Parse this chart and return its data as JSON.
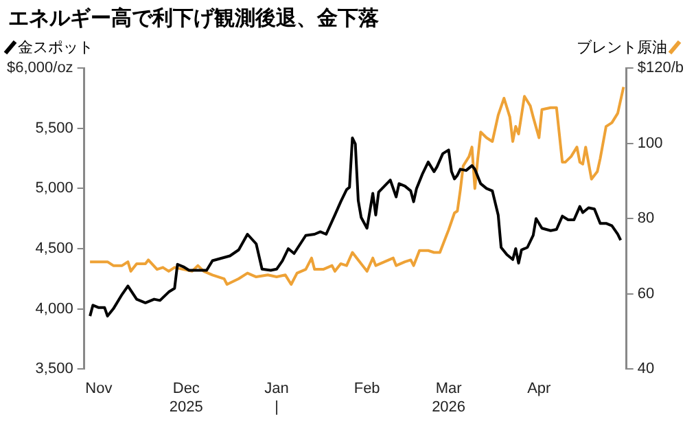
{
  "chart_data": {
    "type": "line",
    "title": "エネルギー高で利下げ観測後退、金下落",
    "legend": "top",
    "marker": "none",
    "line_style": "solid",
    "xlim": [
      "2025-10-27",
      "2026-05-01"
    ],
    "xticks": [
      {
        "value": "2025-11-01",
        "label": "Nov"
      },
      {
        "value": "2025-12-01",
        "label": "Dec\n2025"
      },
      {
        "value": "2026-01-01",
        "label": "Jan\n|"
      },
      {
        "value": "2026-02-01",
        "label": "Feb"
      },
      {
        "value": "2026-03-01",
        "label": "Mar\n2026"
      },
      {
        "value": "2026-04-01",
        "label": "Apr"
      }
    ],
    "ylim": [
      3500,
      6000
    ],
    "yticks": [
      {
        "value": 3500,
        "label": "3,500"
      },
      {
        "value": 4000,
        "label": "4,000"
      },
      {
        "value": 4500,
        "label": "4,500"
      },
      {
        "value": 5000,
        "label": "5,000"
      },
      {
        "value": 5500,
        "label": "5,500"
      },
      {
        "value": 6000,
        "label": "$6,000/oz"
      }
    ],
    "y2lim": [
      40,
      120
    ],
    "y2ticks": [
      40,
      60,
      80,
      100,
      {
        "value": 120,
        "label": "$120/b"
      }
    ],
    "series": [
      {
        "name": "金スポット",
        "color": "#000000",
        "x": [
          "2025-10-29",
          "2025-10-30",
          "2025-11-01",
          "2025-11-03",
          "2025-11-04",
          "2025-11-06",
          "2025-11-09",
          "2025-11-11",
          "2025-11-14",
          "2025-11-17",
          "2025-11-20",
          "2025-11-22",
          "2025-11-25",
          "2025-11-27",
          "2025-11-28",
          "2025-11-30",
          "2025-12-02",
          "2025-12-05",
          "2025-12-08",
          "2025-12-10",
          "2025-12-13",
          "2025-12-16",
          "2025-12-19",
          "2025-12-22",
          "2025-12-25",
          "2025-12-27",
          "2025-12-30",
          "2026-01-01",
          "2026-01-03",
          "2026-01-05",
          "2026-01-07",
          "2026-01-11",
          "2026-01-14",
          "2026-01-16",
          "2026-01-18",
          "2026-01-21",
          "2026-01-23",
          "2026-01-25",
          "2026-01-26",
          "2026-01-27",
          "2026-01-28",
          "2026-01-29",
          "2026-01-30",
          "2026-02-01",
          "2026-02-03",
          "2026-02-04",
          "2026-02-05",
          "2026-02-07",
          "2026-02-09",
          "2026-02-11",
          "2026-02-12",
          "2026-02-14",
          "2026-02-16",
          "2026-02-17",
          "2026-02-18",
          "2026-02-20",
          "2026-02-22",
          "2026-02-24",
          "2026-02-25",
          "2026-02-27",
          "2026-03-01",
          "2026-03-02",
          "2026-03-03",
          "2026-03-04",
          "2026-03-05",
          "2026-03-07",
          "2026-03-09",
          "2026-03-10",
          "2026-03-12",
          "2026-03-14",
          "2026-03-16",
          "2026-03-18",
          "2026-03-19",
          "2026-03-21",
          "2026-03-23",
          "2026-03-24",
          "2026-03-25",
          "2026-03-26",
          "2026-03-28",
          "2026-03-30",
          "2026-03-31",
          "2026-04-02",
          "2026-04-05",
          "2026-04-07",
          "2026-04-09",
          "2026-04-11",
          "2026-04-13",
          "2026-04-15",
          "2026-04-16",
          "2026-04-18",
          "2026-04-20",
          "2026-04-22",
          "2026-04-24",
          "2026-04-26",
          "2026-04-28",
          "2026-04-29"
        ],
        "values": [
          3940,
          4030,
          4010,
          4010,
          3940,
          4000,
          4120,
          4190,
          4080,
          4050,
          4080,
          4070,
          4140,
          4170,
          4370,
          4350,
          4320,
          4320,
          4320,
          4400,
          4420,
          4440,
          4490,
          4620,
          4540,
          4330,
          4320,
          4330,
          4400,
          4500,
          4460,
          4610,
          4620,
          4640,
          4620,
          4780,
          4890,
          4990,
          5010,
          5420,
          5370,
          4900,
          4760,
          4670,
          4960,
          4780,
          4970,
          5020,
          5070,
          4930,
          5040,
          5020,
          4980,
          4890,
          5000,
          5120,
          5220,
          5140,
          5180,
          5290,
          5320,
          5140,
          5080,
          5110,
          5160,
          5150,
          5190,
          5160,
          5040,
          5000,
          4980,
          4780,
          4510,
          4450,
          4410,
          4500,
          4380,
          4490,
          4510,
          4610,
          4750,
          4670,
          4650,
          4660,
          4770,
          4740,
          4740,
          4850,
          4800,
          4840,
          4830,
          4710,
          4710,
          4690,
          4620,
          4570
        ]
      },
      {
        "name": "ブレント原油",
        "color": "#eea236",
        "axis": "y2",
        "x": [
          "2025-10-29",
          "2025-11-04",
          "2025-11-06",
          "2025-11-09",
          "2025-11-11",
          "2025-11-12",
          "2025-11-14",
          "2025-11-17",
          "2025-11-18",
          "2025-11-21",
          "2025-11-23",
          "2025-11-25",
          "2025-11-27",
          "2025-11-30",
          "2025-12-03",
          "2025-12-05",
          "2025-12-07",
          "2025-12-10",
          "2025-12-14",
          "2025-12-15",
          "2025-12-19",
          "2025-12-22",
          "2025-12-25",
          "2025-12-29",
          "2026-01-01",
          "2026-01-04",
          "2026-01-06",
          "2026-01-08",
          "2026-01-11",
          "2026-01-13",
          "2026-01-14",
          "2026-01-17",
          "2026-01-20",
          "2026-01-21",
          "2026-01-23",
          "2026-01-25",
          "2026-01-27",
          "2026-01-29",
          "2026-01-31",
          "2026-02-01",
          "2026-02-03",
          "2026-02-04",
          "2026-02-07",
          "2026-02-10",
          "2026-02-11",
          "2026-02-14",
          "2026-02-16",
          "2026-02-17",
          "2026-02-19",
          "2026-02-22",
          "2026-02-24",
          "2026-02-26",
          "2026-02-28",
          "2026-03-01",
          "2026-03-03",
          "2026-03-04",
          "2026-03-05",
          "2026-03-06",
          "2026-03-08",
          "2026-03-09",
          "2026-03-10",
          "2026-03-11",
          "2026-03-12",
          "2026-03-14",
          "2026-03-16",
          "2026-03-18",
          "2026-03-20",
          "2026-03-22",
          "2026-03-23",
          "2026-03-24",
          "2026-03-25",
          "2026-03-27",
          "2026-03-29",
          "2026-03-30",
          "2026-04-01",
          "2026-04-02",
          "2026-04-05",
          "2026-04-07",
          "2026-04-09",
          "2026-04-10",
          "2026-04-12",
          "2026-04-14",
          "2026-04-15",
          "2026-04-16",
          "2026-04-17",
          "2026-04-19",
          "2026-04-21",
          "2026-04-22",
          "2026-04-24",
          "2026-04-26",
          "2026-04-28",
          "2026-04-30"
        ],
        "values": [
          68.5,
          68.5,
          67.5,
          67.5,
          68.5,
          66,
          68,
          68,
          69,
          66.5,
          67,
          66,
          67,
          66.5,
          66,
          67.5,
          66,
          65,
          64,
          62.5,
          64,
          65.5,
          64.5,
          65,
          64.5,
          65,
          62.5,
          65.5,
          66.5,
          69.5,
          66.5,
          66.5,
          67.5,
          66,
          68,
          67.5,
          71,
          69,
          67,
          66,
          69.5,
          67.5,
          68.5,
          69.5,
          67.5,
          68.5,
          69,
          67.5,
          71.5,
          71.5,
          71,
          71,
          75,
          77,
          81.5,
          82,
          87.5,
          94,
          96.5,
          99,
          88,
          96,
          103,
          101.5,
          100.5,
          107.5,
          112,
          107,
          100.5,
          104.5,
          102.5,
          112.5,
          110,
          107,
          101.5,
          109,
          109.5,
          109.5,
          95,
          95,
          96.5,
          99,
          95,
          94.5,
          99,
          90.5,
          92.5,
          96,
          104.5,
          105.5,
          108,
          115
        ]
      }
    ]
  }
}
